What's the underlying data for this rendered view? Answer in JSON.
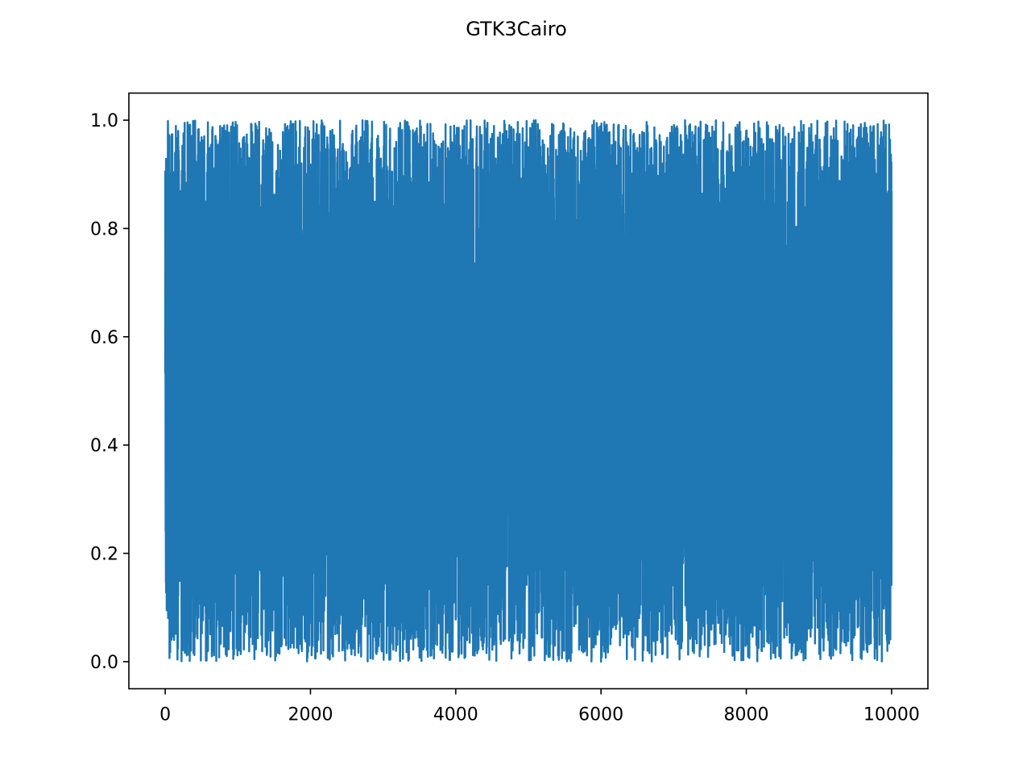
{
  "window": {
    "title": "GTK3Cairo"
  },
  "chart_data": {
    "type": "line",
    "title": "GTK3Cairo",
    "xlabel": "",
    "ylabel": "",
    "xlim": [
      -500,
      10500
    ],
    "ylim": [
      -0.05,
      1.05
    ],
    "xticks": [
      {
        "value": 0,
        "label": "0"
      },
      {
        "value": 2000,
        "label": "2000"
      },
      {
        "value": 4000,
        "label": "4000"
      },
      {
        "value": 6000,
        "label": "6000"
      },
      {
        "value": 8000,
        "label": "8000"
      },
      {
        "value": 10000,
        "label": "10000"
      }
    ],
    "yticks": [
      {
        "value": 0.0,
        "label": "0.0"
      },
      {
        "value": 0.2,
        "label": "0.2"
      },
      {
        "value": 0.4,
        "label": "0.4"
      },
      {
        "value": 0.6,
        "label": "0.6"
      },
      {
        "value": 0.8,
        "label": "0.8"
      },
      {
        "value": 1.0,
        "label": "1.0"
      }
    ],
    "grid": false,
    "legend": "none",
    "series": [
      {
        "color": "#1f77b4",
        "x_range": [
          0,
          10000
        ],
        "n_points": 10000,
        "distribution": "uniform random values between 0 and 1",
        "y_min": 0.0,
        "y_max": 1.0
      }
    ]
  }
}
